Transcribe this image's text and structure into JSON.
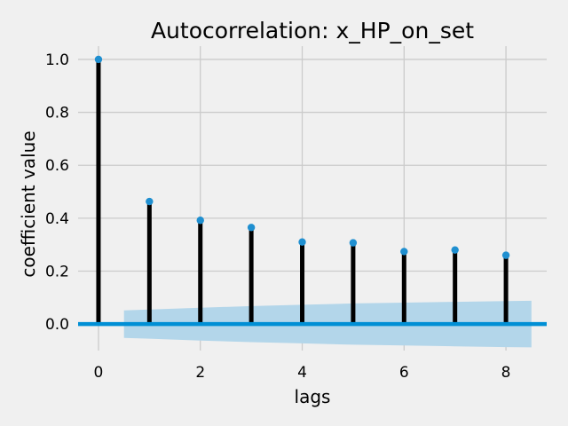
{
  "chart_data": {
    "type": "stem",
    "title": "Autocorrelation: x_HP_on_set",
    "xlabel": "lags",
    "ylabel": "coefficient value",
    "x": [
      0,
      1,
      2,
      3,
      4,
      5,
      6,
      7,
      8
    ],
    "values": [
      1.0,
      0.463,
      0.392,
      0.365,
      0.31,
      0.307,
      0.274,
      0.28,
      0.26
    ],
    "confidence_band": {
      "x": [
        0.5,
        1,
        2,
        3,
        4,
        5,
        6,
        7,
        8,
        8.5
      ],
      "upper": [
        0.052,
        0.055,
        0.062,
        0.068,
        0.073,
        0.078,
        0.081,
        0.084,
        0.087,
        0.088
      ],
      "lower": [
        -0.052,
        -0.055,
        -0.062,
        -0.068,
        -0.073,
        -0.078,
        -0.081,
        -0.084,
        -0.087,
        -0.088
      ]
    },
    "xlim": [
      -0.4,
      8.8
    ],
    "ylim": [
      -0.1,
      1.05
    ],
    "xticks": [
      0,
      2,
      4,
      6,
      8
    ],
    "xtick_labels": [
      "0",
      "2",
      "4",
      "6",
      "8"
    ],
    "yticks": [
      0.0,
      0.2,
      0.4,
      0.6,
      0.8,
      1.0
    ],
    "ytick_labels": [
      "0.0",
      "0.2",
      "0.4",
      "0.6",
      "0.8",
      "1.0"
    ],
    "grid": true,
    "colors": {
      "background": "#f0f0f0",
      "grid": "#cbcbcb",
      "stem": "#000000",
      "marker": "#1f8fd0",
      "zero_line": "#008fd5",
      "band": "#b3d6ea"
    }
  }
}
